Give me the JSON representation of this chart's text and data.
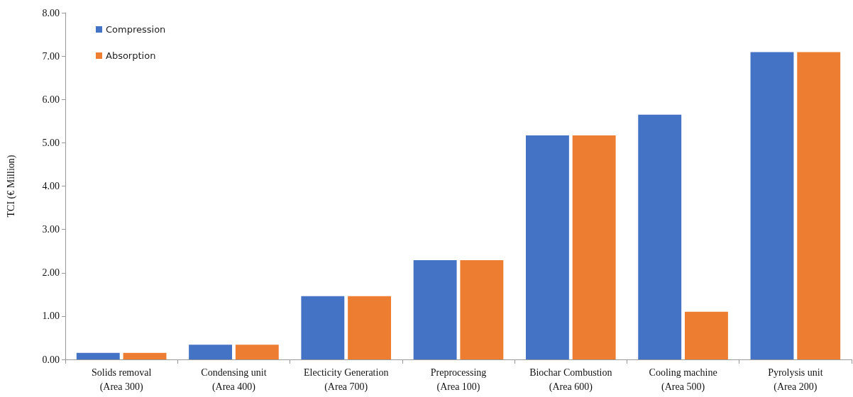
{
  "chart_data": {
    "type": "bar",
    "ylabel": "TCI (€ Million)",
    "categories": [
      "Solids removal\n(Area 300)",
      "Condensing unit\n(Area 400)",
      "Electicity Generation\n(Area 700)",
      "Preprocessing\n(Area 100)",
      "Biochar Combustion\n(Area 600)",
      "Cooling machine\n(Area 500)",
      "Pyrolysis unit\n(Area 200)"
    ],
    "series": [
      {
        "name": "Compression",
        "color": "#4472c4",
        "values": [
          0.15,
          0.34,
          1.46,
          2.29,
          5.17,
          5.65,
          7.09
        ]
      },
      {
        "name": "Absorption",
        "color": "#ed7d31",
        "values": [
          0.15,
          0.34,
          1.46,
          2.29,
          5.17,
          1.1,
          7.09
        ]
      }
    ],
    "ylim": [
      0,
      8
    ],
    "yticks": [
      {
        "value": 0,
        "label": "0.00"
      },
      {
        "value": 1,
        "label": "1.00"
      },
      {
        "value": 2,
        "label": "2.00"
      },
      {
        "value": 3,
        "label": "3.00"
      },
      {
        "value": 4,
        "label": "4.00"
      },
      {
        "value": 5,
        "label": "5.00"
      },
      {
        "value": 6,
        "label": "6.00"
      },
      {
        "value": 7,
        "label": "7.00"
      },
      {
        "value": 8,
        "label": "8.00"
      }
    ],
    "grid": false,
    "legend": "top left"
  }
}
